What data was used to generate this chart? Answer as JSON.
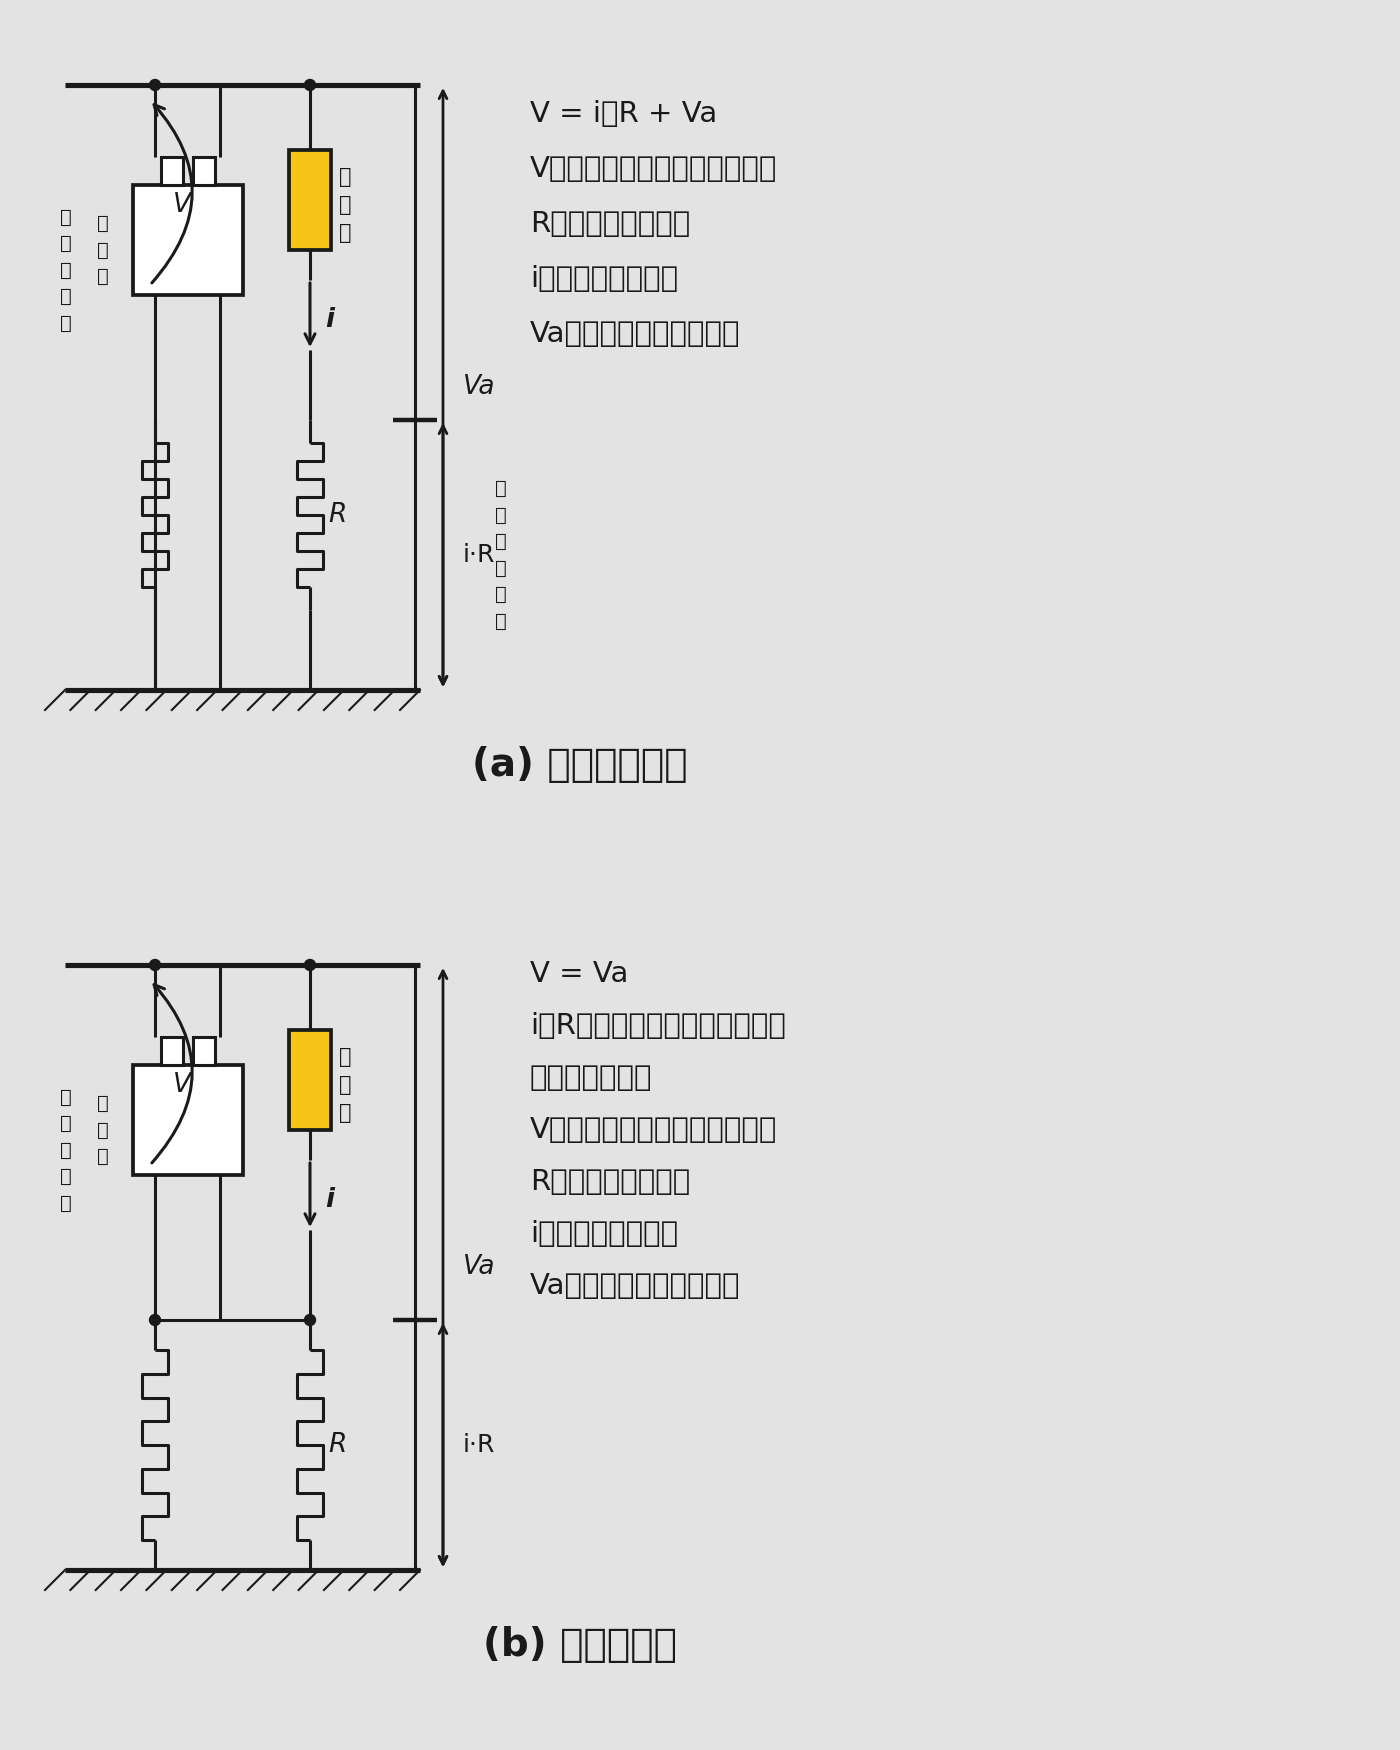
{
  "bg_color": "#e3e3e3",
  "line_color": "#1a1a1a",
  "arrester_fill": "#f5c518",
  "title_a": "(a) 非連接接地時",
  "title_b": "(b) 連接接地時",
  "eq_a": [
    "V = i・R + Va",
    "V：変圧器一次側に生じる電圧",
    "R：避雷器接地抵抗",
    "i：避雷器放電電流",
    "Va：避雷器の端子間電圧"
  ],
  "eq_b": [
    "V = Va",
    "i・Rの電位上昇分が変圧器には",
    "印加されない。",
    "V：変圧器一次側に生じる電圧",
    "R：避雷器接地抵抗",
    "i：避雷器放電電流",
    "Va：避雷器の端子間電圧"
  ],
  "label_arrester": "避\n雷\n器",
  "label_arrester_gnd": "避\n雷\n器\n用\n接\n地",
  "label_keesu": "ケ\nー\nス\n接\n地",
  "label_hensatsu": "変\n圧\n器",
  "lw": 2.2,
  "dot_r": 5.5
}
